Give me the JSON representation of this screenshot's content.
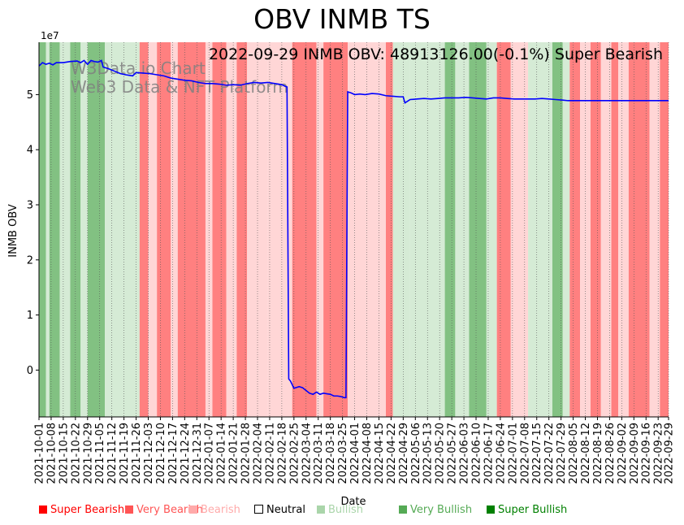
{
  "chart_data": {
    "type": "line",
    "title": "OBV INMB TS",
    "annotation": "2022-09-29 INMB OBV: 48913126.00(-0.1%) Super Bearish",
    "watermark": [
      "W3Data.io Chart",
      "Web3 Data & NFT Platform"
    ],
    "xlabel": "Date",
    "ylabel": "INMB OBV",
    "y_scale_label": "1e7",
    "ylim": [
      -0.85,
      5.95
    ],
    "y_ticks": [
      0,
      1,
      2,
      3,
      4,
      5
    ],
    "x_start": "2021-10-01",
    "x_end": "2022-09-29",
    "x_ticks": [
      "2021-10-01",
      "2021-10-08",
      "2021-10-15",
      "2021-10-22",
      "2021-10-29",
      "2021-11-05",
      "2021-11-12",
      "2021-11-19",
      "2021-11-26",
      "2021-12-03",
      "2021-12-10",
      "2021-12-17",
      "2021-12-24",
      "2021-12-31",
      "2022-01-07",
      "2022-01-14",
      "2022-01-21",
      "2022-01-28",
      "2022-02-04",
      "2022-02-11",
      "2022-02-18",
      "2022-02-25",
      "2022-03-04",
      "2022-03-11",
      "2022-03-18",
      "2022-03-25",
      "2022-04-01",
      "2022-04-08",
      "2022-04-15",
      "2022-04-22",
      "2022-04-29",
      "2022-05-06",
      "2022-05-13",
      "2022-05-20",
      "2022-05-27",
      "2022-06-03",
      "2022-06-10",
      "2022-06-17",
      "2022-06-24",
      "2022-07-01",
      "2022-07-08",
      "2022-07-15",
      "2022-07-22",
      "2022-07-29",
      "2022-08-05",
      "2022-08-12",
      "2022-08-19",
      "2022-08-26",
      "2022-09-02",
      "2022-09-09",
      "2022-09-16",
      "2022-09-23",
      "2022-09-29"
    ],
    "series": [
      {
        "name": "INMB OBV",
        "color": "#0000ff",
        "points": [
          [
            0,
            5.52
          ],
          [
            2,
            5.58
          ],
          [
            4,
            5.55
          ],
          [
            6,
            5.57
          ],
          [
            8,
            5.54
          ],
          [
            10,
            5.58
          ],
          [
            14,
            5.58
          ],
          [
            18,
            5.6
          ],
          [
            22,
            5.61
          ],
          [
            24,
            5.58
          ],
          [
            26,
            5.62
          ],
          [
            28,
            5.55
          ],
          [
            30,
            5.62
          ],
          [
            32,
            5.6
          ],
          [
            34,
            5.59
          ],
          [
            36,
            5.62
          ],
          [
            37,
            5.5
          ],
          [
            40,
            5.47
          ],
          [
            44,
            5.42
          ],
          [
            47,
            5.38
          ],
          [
            50,
            5.36
          ],
          [
            54,
            5.34
          ],
          [
            56,
            5.4
          ],
          [
            60,
            5.39
          ],
          [
            64,
            5.38
          ],
          [
            68,
            5.36
          ],
          [
            72,
            5.34
          ],
          [
            76,
            5.3
          ],
          [
            80,
            5.28
          ],
          [
            84,
            5.26
          ],
          [
            88,
            5.25
          ],
          [
            92,
            5.22
          ],
          [
            96,
            5.2
          ],
          [
            100,
            5.2
          ],
          [
            104,
            5.19
          ],
          [
            108,
            5.17
          ],
          [
            112,
            5.18
          ],
          [
            116,
            5.17
          ],
          [
            120,
            5.2
          ],
          [
            124,
            5.22
          ],
          [
            128,
            5.21
          ],
          [
            132,
            5.22
          ],
          [
            136,
            5.2
          ],
          [
            140,
            5.18
          ],
          [
            142,
            5.15
          ],
          [
            143,
            5.14
          ],
          [
            144,
            -0.16
          ],
          [
            145,
            -0.2
          ],
          [
            147,
            -0.33
          ],
          [
            150,
            -0.3
          ],
          [
            152,
            -0.32
          ],
          [
            154,
            -0.37
          ],
          [
            156,
            -0.42
          ],
          [
            158,
            -0.44
          ],
          [
            160,
            -0.4
          ],
          [
            162,
            -0.44
          ],
          [
            164,
            -0.42
          ],
          [
            166,
            -0.43
          ],
          [
            168,
            -0.44
          ],
          [
            170,
            -0.47
          ],
          [
            172,
            -0.47
          ],
          [
            174,
            -0.48
          ],
          [
            176,
            -0.5
          ],
          [
            177,
            -0.5
          ],
          [
            178,
            5.05
          ],
          [
            180,
            5.03
          ],
          [
            182,
            5.0
          ],
          [
            185,
            5.01
          ],
          [
            188,
            5.0
          ],
          [
            192,
            5.02
          ],
          [
            196,
            5.01
          ],
          [
            200,
            4.98
          ],
          [
            204,
            4.97
          ],
          [
            208,
            4.96
          ],
          [
            210,
            4.96
          ],
          [
            211,
            4.85
          ],
          [
            214,
            4.91
          ],
          [
            218,
            4.92
          ],
          [
            222,
            4.93
          ],
          [
            226,
            4.92
          ],
          [
            230,
            4.93
          ],
          [
            234,
            4.94
          ],
          [
            238,
            4.94
          ],
          [
            242,
            4.94
          ],
          [
            246,
            4.95
          ],
          [
            250,
            4.94
          ],
          [
            254,
            4.93
          ],
          [
            258,
            4.92
          ],
          [
            262,
            4.94
          ],
          [
            266,
            4.94
          ],
          [
            270,
            4.93
          ],
          [
            274,
            4.92
          ],
          [
            278,
            4.92
          ],
          [
            282,
            4.92
          ],
          [
            286,
            4.92
          ],
          [
            290,
            4.93
          ],
          [
            294,
            4.92
          ],
          [
            298,
            4.91
          ],
          [
            302,
            4.9
          ],
          [
            305,
            4.89
          ],
          [
            363,
            4.89
          ]
        ]
      }
    ],
    "sentiment_bands": [
      {
        "start": 0,
        "end": 4,
        "label": "Very Bullish"
      },
      {
        "start": 4,
        "end": 6,
        "label": "Bullish"
      },
      {
        "start": 6,
        "end": 12,
        "label": "Very Bullish"
      },
      {
        "start": 12,
        "end": 18,
        "label": "Bullish"
      },
      {
        "start": 18,
        "end": 24,
        "label": "Very Bullish"
      },
      {
        "start": 24,
        "end": 28,
        "label": "Bullish"
      },
      {
        "start": 28,
        "end": 38,
        "label": "Very Bullish"
      },
      {
        "start": 38,
        "end": 48,
        "label": "Bullish"
      },
      {
        "start": 48,
        "end": 58,
        "label": "Bullish"
      },
      {
        "start": 58,
        "end": 63,
        "label": "Very Bearish"
      },
      {
        "start": 63,
        "end": 68,
        "label": "Bearish"
      },
      {
        "start": 68,
        "end": 76,
        "label": "Very Bearish"
      },
      {
        "start": 76,
        "end": 80,
        "label": "Bearish"
      },
      {
        "start": 80,
        "end": 96,
        "label": "Very Bearish"
      },
      {
        "start": 96,
        "end": 100,
        "label": "Bearish"
      },
      {
        "start": 100,
        "end": 108,
        "label": "Very Bearish"
      },
      {
        "start": 108,
        "end": 114,
        "label": "Bearish"
      },
      {
        "start": 114,
        "end": 120,
        "label": "Very Bearish"
      },
      {
        "start": 120,
        "end": 132,
        "label": "Bearish"
      },
      {
        "start": 132,
        "end": 146,
        "label": "Bearish"
      },
      {
        "start": 146,
        "end": 160,
        "label": "Very Bearish"
      },
      {
        "start": 160,
        "end": 164,
        "label": "Bearish"
      },
      {
        "start": 164,
        "end": 178,
        "label": "Very Bearish"
      },
      {
        "start": 178,
        "end": 200,
        "label": "Bearish"
      },
      {
        "start": 200,
        "end": 204,
        "label": "Very Bearish"
      },
      {
        "start": 204,
        "end": 214,
        "label": "Bullish"
      },
      {
        "start": 214,
        "end": 234,
        "label": "Bullish"
      },
      {
        "start": 234,
        "end": 240,
        "label": "Very Bullish"
      },
      {
        "start": 240,
        "end": 248,
        "label": "Bullish"
      },
      {
        "start": 248,
        "end": 258,
        "label": "Very Bullish"
      },
      {
        "start": 258,
        "end": 264,
        "label": "Bullish"
      },
      {
        "start": 264,
        "end": 272,
        "label": "Very Bearish"
      },
      {
        "start": 272,
        "end": 282,
        "label": "Bearish"
      },
      {
        "start": 282,
        "end": 296,
        "label": "Bullish"
      },
      {
        "start": 296,
        "end": 302,
        "label": "Very Bullish"
      },
      {
        "start": 302,
        "end": 306,
        "label": "Bullish"
      },
      {
        "start": 306,
        "end": 312,
        "label": "Very Bearish"
      },
      {
        "start": 312,
        "end": 318,
        "label": "Bearish"
      },
      {
        "start": 318,
        "end": 324,
        "label": "Very Bearish"
      },
      {
        "start": 324,
        "end": 330,
        "label": "Bearish"
      },
      {
        "start": 330,
        "end": 334,
        "label": "Very Bearish"
      },
      {
        "start": 334,
        "end": 340,
        "label": "Bearish"
      },
      {
        "start": 340,
        "end": 352,
        "label": "Very Bearish"
      },
      {
        "start": 352,
        "end": 358,
        "label": "Bearish"
      },
      {
        "start": 358,
        "end": 364,
        "label": "Very Bearish"
      }
    ],
    "band_colors": {
      "Very Bearish": "#ff8080",
      "Bearish": "#ffd6d6",
      "Bullish": "#d5ebd5",
      "Very Bullish": "#82c182"
    },
    "legend": [
      {
        "label": "Super Bearish",
        "color": "#ff0000"
      },
      {
        "label": "Very Bearish",
        "color": "#ff5555"
      },
      {
        "label": "Bearish",
        "color": "#ffaaaa"
      },
      {
        "label": "Neutral",
        "color": "#000000"
      },
      {
        "label": "Bullish",
        "color": "#aad5aa"
      },
      {
        "label": "Very Bullish",
        "color": "#55aa55"
      },
      {
        "label": "Super Bullish",
        "color": "#008000"
      }
    ]
  }
}
